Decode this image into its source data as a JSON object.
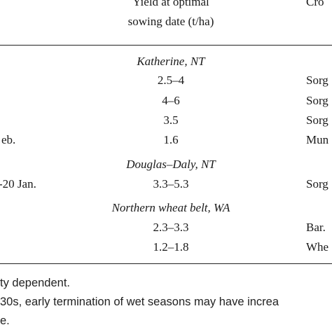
{
  "header": {
    "yield_line1": "Yield at optimal",
    "yield_line2": "sowing date (t/ha)",
    "crop": "Cro"
  },
  "sections": [
    {
      "name": "Katherine, NT",
      "rows": [
        {
          "date": "",
          "yield": "2.5–4",
          "crop": "Sorg"
        },
        {
          "date": "",
          "yield": "4–6",
          "crop": "Sorg"
        },
        {
          "date": "",
          "yield": "3.5",
          "crop": "Sorg"
        },
        {
          "date": "eb.",
          "yield": "1.6",
          "crop": "Mun"
        }
      ]
    },
    {
      "name": "Douglas–Daly, NT",
      "rows": [
        {
          "date": "-20 Jan.",
          "yield": "3.3–5.3",
          "crop": "Sorg"
        }
      ]
    },
    {
      "name": "Northern wheat belt, WA",
      "rows": [
        {
          "date": "",
          "yield": "2.3–3.3",
          "crop": "Bar."
        },
        {
          "date": "",
          "yield": "1.2–1.8",
          "crop": "Whe"
        }
      ]
    }
  ],
  "footnotes": [
    "ty dependent.",
    "30s, early termination of wet seasons may have increa",
    "e."
  ]
}
